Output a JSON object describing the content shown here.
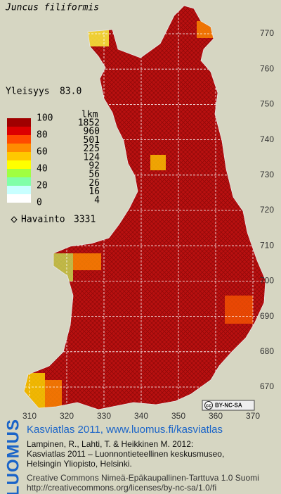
{
  "title": "Juncus filiformis",
  "frequency": {
    "label": "Yleisyys",
    "value": "83.0"
  },
  "legend": {
    "scale_labels": [
      "100",
      "80",
      "60",
      "40",
      "20",
      "0"
    ],
    "colors": [
      "#a00000",
      "#dc0000",
      "#ff4a00",
      "#ff8c00",
      "#ffc800",
      "#ffff00",
      "#a0ff40",
      "#80ffa8",
      "#c8ffff",
      "#ffffff"
    ],
    "count_header": "lkm",
    "counts": [
      "1852",
      "960",
      "501",
      "225",
      "124",
      "92",
      "56",
      "26",
      "16",
      "4"
    ]
  },
  "observations": {
    "label": "Havainto",
    "value": "3331"
  },
  "grid": {
    "y_labels": [
      770,
      760,
      750,
      740,
      730,
      720,
      710,
      700,
      690,
      680,
      670
    ],
    "x_labels": [
      310,
      320,
      330,
      340,
      350,
      360,
      370
    ]
  },
  "license_badge": {
    "icon": "cc",
    "text": "BY-NC-SA"
  },
  "footer": {
    "brand": "LUOMUS",
    "link": "Kasviatlas 2011, www.luomus.fi/kasviatlas",
    "citation": [
      "Lampinen, R., Lahti, T. & Heikkinen M. 2012:",
      "Kasviatlas 2011 – Luonnontieteellinen keskusmuseo,",
      "Helsingin Yliopisto, Helsinki."
    ],
    "license": [
      "Creative Commons Nimeä-Epäkaupallinen-Tarttuva 1.0 Suomi",
      "http://creativecommons.org/licenses/by-nc-sa/1.0/fi"
    ]
  }
}
